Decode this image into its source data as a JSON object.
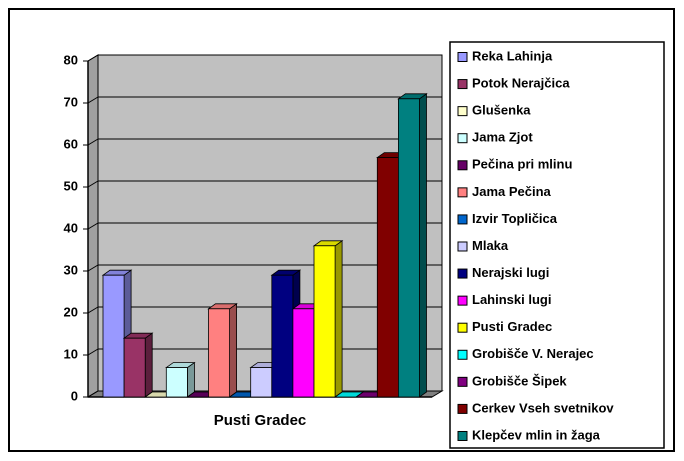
{
  "chart_data": {
    "type": "bar3d",
    "categories": [
      "Pusti Gradec"
    ],
    "series": [
      {
        "name": "Reka Lahinja",
        "color": "#9999ff",
        "values": [
          29
        ]
      },
      {
        "name": "Potok Nerajčica",
        "color": "#993366",
        "values": [
          14
        ]
      },
      {
        "name": "Glušenka",
        "color": "#ffffcc",
        "values": [
          0
        ]
      },
      {
        "name": "Jama Zjot",
        "color": "#ccffff",
        "values": [
          7
        ]
      },
      {
        "name": "Pečina pri mlinu",
        "color": "#660066",
        "values": [
          0
        ]
      },
      {
        "name": "Jama Pečina",
        "color": "#ff8080",
        "values": [
          21
        ]
      },
      {
        "name": "Izvir Topličica",
        "color": "#0066cc",
        "values": [
          0
        ]
      },
      {
        "name": "Mlaka",
        "color": "#ccccff",
        "values": [
          7
        ]
      },
      {
        "name": "Nerajski lugi",
        "color": "#000080",
        "values": [
          29
        ]
      },
      {
        "name": "Lahinski lugi",
        "color": "#ff00ff",
        "values": [
          21
        ]
      },
      {
        "name": "Pusti Gradec",
        "color": "#ffff00",
        "values": [
          36
        ]
      },
      {
        "name": "Grobišče V. Nerajec",
        "color": "#00ffff",
        "values": [
          0
        ]
      },
      {
        "name": "Grobišče Šipek",
        "color": "#800080",
        "values": [
          0
        ]
      },
      {
        "name": "Cerkev Vseh svetnikov",
        "color": "#800000",
        "values": [
          57
        ]
      },
      {
        "name": "Klepčev mlin in žaga",
        "color": "#008080",
        "values": [
          71
        ]
      }
    ],
    "ylim": [
      0,
      80
    ],
    "yticks": [
      0,
      10,
      20,
      30,
      40,
      50,
      60,
      70,
      80
    ],
    "grid": true,
    "legend": "right"
  }
}
